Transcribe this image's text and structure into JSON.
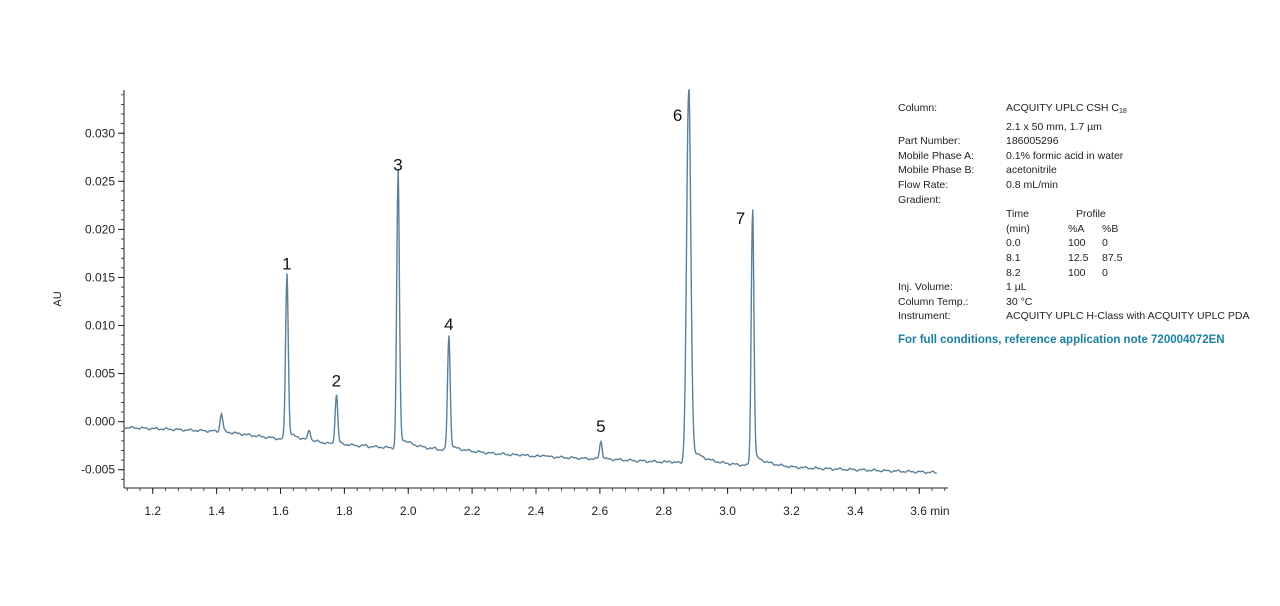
{
  "chart_data": {
    "type": "line",
    "xlabel": "",
    "x_unit": "min",
    "ylabel": "AU",
    "xlim": [
      1.11,
      3.69
    ],
    "ylim": [
      -0.0069,
      0.0345
    ],
    "x_ticks": [
      1.2,
      1.4,
      1.6,
      1.8,
      2.0,
      2.2,
      2.4,
      2.6,
      2.8,
      3.0,
      3.2,
      3.4,
      3.6
    ],
    "x_tick_labels": [
      "1.2",
      "1.4",
      "1.6",
      "1.8",
      "2.0",
      "2.2",
      "2.4",
      "2.6",
      "2.8",
      "3.0",
      "3.2",
      "3.4",
      "3.6 min"
    ],
    "y_ticks": [
      -0.005,
      0.0,
      0.005,
      0.01,
      0.015,
      0.02,
      0.025,
      0.03
    ],
    "y_tick_labels": [
      "-0.005",
      "0.000",
      "0.005",
      "0.010",
      "0.015",
      "0.020",
      "0.025",
      "0.030"
    ],
    "line_color": "#5a7f99",
    "baseline": [
      [
        1.11,
        -0.0006
      ],
      [
        1.4,
        -0.001
      ],
      [
        1.6,
        -0.0018
      ],
      [
        1.8,
        -0.0025
      ],
      [
        2.0,
        -0.0028
      ],
      [
        2.2,
        -0.0032
      ],
      [
        2.4,
        -0.0036
      ],
      [
        2.6,
        -0.0039
      ],
      [
        2.8,
        -0.0042
      ],
      [
        3.0,
        -0.0045
      ],
      [
        3.2,
        -0.0048
      ],
      [
        3.4,
        -0.005
      ],
      [
        3.66,
        -0.0053
      ]
    ],
    "peaks": [
      {
        "label": "",
        "rt": 1.415,
        "height": 0.0008
      },
      {
        "label": "1",
        "rt": 1.62,
        "height": 0.0148
      },
      {
        "label": "",
        "rt": 1.69,
        "height": -0.0011
      },
      {
        "label": "2",
        "rt": 1.775,
        "height": 0.0026
      },
      {
        "label": "",
        "rt": 1.865,
        "height": -0.0025
      },
      {
        "label": "3",
        "rt": 1.968,
        "height": 0.0251
      },
      {
        "label": "",
        "rt": 2.085,
        "height": -0.0029
      },
      {
        "label": "4",
        "rt": 2.127,
        "height": 0.0085
      },
      {
        "label": "",
        "rt": 2.355,
        "height": -0.0034
      },
      {
        "label": "",
        "rt": 2.425,
        "height": -0.0034
      },
      {
        "label": "5",
        "rt": 2.603,
        "height": -0.0021
      },
      {
        "label": "",
        "rt": 2.82,
        "height": -0.0041
      },
      {
        "label": "6",
        "rt": 2.878,
        "height": 0.034
      },
      {
        "label": "7",
        "rt": 3.078,
        "height": 0.0214
      }
    ]
  },
  "conditions": {
    "rows": [
      {
        "label": "Column:",
        "value": "ACQUITY UPLC CSH C",
        "sub": "18"
      },
      {
        "label": "",
        "value": "2.1 x 50 mm, 1.7 µm"
      },
      {
        "label": "Part Number:",
        "value": "186005296"
      },
      {
        "label": "Mobile Phase A:",
        "value": "0.1% formic acid in water"
      },
      {
        "label": "Mobile Phase B:",
        "value": "acetonitrile"
      },
      {
        "label": "Flow Rate:",
        "value": "0.8 mL/min"
      },
      {
        "label": "Gradient:",
        "value": ""
      }
    ],
    "gradient_head": {
      "time": "Time",
      "profile": "Profile"
    },
    "gradient_cols": [
      "(min)",
      "%A",
      "%B"
    ],
    "gradient_rows": [
      [
        "0.0",
        "100",
        "0"
      ],
      [
        "8.1",
        "12.5",
        "87.5"
      ],
      [
        "8.2",
        "100",
        "0"
      ]
    ],
    "rows_after": [
      {
        "label": "Inj. Volume:",
        "value": "1 µL"
      },
      {
        "label": "Column Temp.:",
        "value": "30 °C"
      },
      {
        "label": "Instrument:",
        "value": "ACQUITY UPLC H-Class with ACQUITY UPLC PDA"
      }
    ],
    "note": "For full conditions, reference application note 720004072EN"
  }
}
